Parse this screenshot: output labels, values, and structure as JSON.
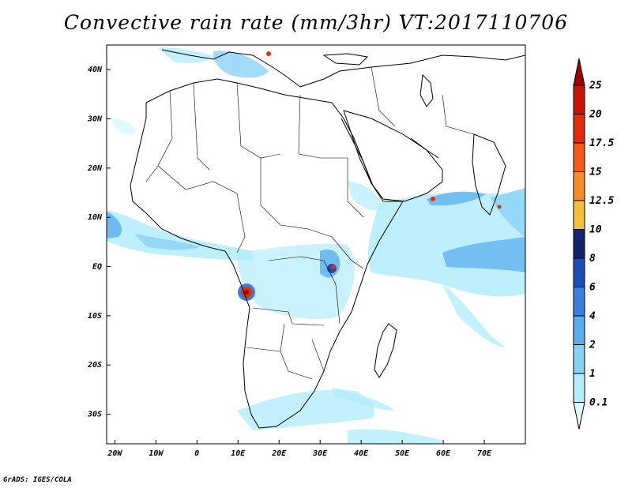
{
  "title": "Convective rain rate (mm/3hr) VT:2017110706",
  "credit": "GrADS: IGES/COLA",
  "map": {
    "lon_range": [
      -22,
      80
    ],
    "lat_range": [
      -36,
      45
    ],
    "lon_ticks": [
      {
        "lon": -20,
        "label": "20W"
      },
      {
        "lon": -10,
        "label": "10W"
      },
      {
        "lon": 0,
        "label": "0"
      },
      {
        "lon": 10,
        "label": "10E"
      },
      {
        "lon": 20,
        "label": "20E"
      },
      {
        "lon": 30,
        "label": "30E"
      },
      {
        "lon": 40,
        "label": "40E"
      },
      {
        "lon": 50,
        "label": "50E"
      },
      {
        "lon": 60,
        "label": "60E"
      },
      {
        "lon": 70,
        "label": "70E"
      }
    ],
    "lat_ticks": [
      {
        "lat": 40,
        "label": "40N"
      },
      {
        "lat": 30,
        "label": "30N"
      },
      {
        "lat": 20,
        "label": "20N"
      },
      {
        "lat": 10,
        "label": "10N"
      },
      {
        "lat": 0,
        "label": "EQ"
      },
      {
        "lat": -10,
        "label": "10S"
      },
      {
        "lat": -20,
        "label": "20S"
      },
      {
        "lat": -30,
        "label": "30S"
      }
    ]
  },
  "colorbar": {
    "levels": [
      "0.1",
      "1",
      "2",
      "4",
      "6",
      "8",
      "10",
      "12.5",
      "15",
      "17.5",
      "20",
      "25"
    ],
    "colors": [
      "#e1fafe",
      "#b3ecfb",
      "#89d2f5",
      "#5aaef0",
      "#3b7fdd",
      "#1b4fb5",
      "#13236e",
      "#f5be3c",
      "#f58c28",
      "#f55a19",
      "#e12d0a",
      "#c81405",
      "#a00000"
    ]
  }
}
